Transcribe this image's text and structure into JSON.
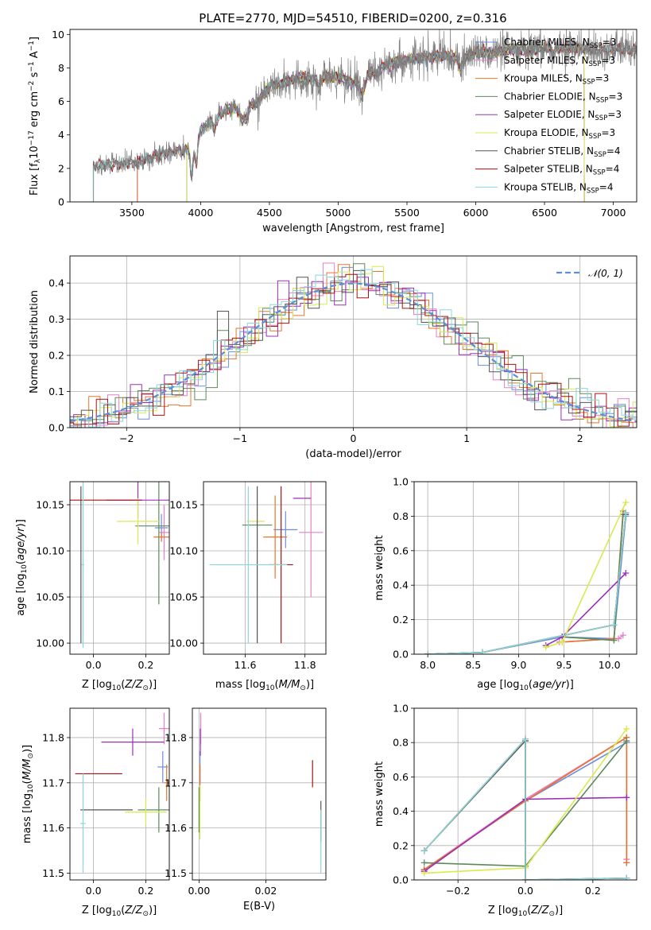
{
  "figure_title": "PLATE=2770, MJD=54510, FIBERID=0200, z=0.316",
  "colors": {
    "Chabrier MILES": "#6c8ee0",
    "Salpeter MILES": "#e77fc7",
    "Kroupa MILES": "#e8752b",
    "Chabrier ELODIE": "#5c8a5c",
    "Salpeter ELODIE": "#9b30b8",
    "Kroupa ELODIE": "#d8ea4e",
    "Chabrier STELIB": "#555555",
    "Salpeter STELIB": "#aa1111",
    "Kroupa STELIB": "#88d8d8",
    "normal": "#5b8fd6"
  },
  "chart_data": [
    {
      "id": "spectrum",
      "type": "line",
      "title": "PLATE=2770, MJD=54510, FIBERID=0200, z=0.316",
      "xlabel": "wavelength [Angstrom, rest frame]",
      "ylabel": "Flux [f_λ 10^-17 erg cm^-2 s^-1 A^-1]",
      "xlim": [
        3050,
        7170
      ],
      "ylim": [
        0,
        10.3
      ],
      "xticks": [
        3500,
        4000,
        4500,
        5000,
        5500,
        6000,
        6500,
        7000
      ],
      "yticks": [
        0,
        2,
        4,
        6,
        8,
        10
      ],
      "legend_position": "right",
      "legend": [
        {
          "name": "Chabrier MILES",
          "nssp": "3"
        },
        {
          "name": "Salpeter MILES",
          "nssp": "3"
        },
        {
          "name": "Kroupa MILES",
          "nssp": "3"
        },
        {
          "name": "Chabrier ELODIE",
          "nssp": "3"
        },
        {
          "name": "Salpeter ELODIE",
          "nssp": "3"
        },
        {
          "name": "Kroupa ELODIE",
          "nssp": "3"
        },
        {
          "name": "Chabrier STELIB",
          "nssp": "4"
        },
        {
          "name": "Salpeter STELIB",
          "nssp": "4"
        },
        {
          "name": "Kroupa STELIB",
          "nssp": "4"
        }
      ],
      "continuum": {
        "x": [
          3220,
          3300,
          3400,
          3500,
          3600,
          3700,
          3800,
          3900,
          3950,
          4000,
          4100,
          4200,
          4300,
          4400,
          4500,
          4600,
          4700,
          4800,
          4900,
          5000,
          5100,
          5200,
          5300,
          5400,
          5500,
          5600,
          5700,
          5800,
          5900,
          6000,
          6100,
          6200,
          6300,
          6400,
          6500,
          6600,
          6700,
          6800,
          6900,
          7000,
          7100,
          7170
        ],
        "y": [
          2.2,
          2.2,
          2.25,
          2.3,
          2.5,
          2.8,
          3.0,
          3.1,
          3.0,
          4.3,
          5.0,
          5.6,
          5.7,
          5.9,
          6.9,
          7.1,
          7.4,
          7.3,
          7.5,
          7.5,
          7.1,
          7.6,
          8.0,
          8.3,
          8.5,
          8.6,
          8.7,
          8.7,
          8.6,
          8.9,
          8.9,
          9.0,
          9.1,
          9.0,
          9.2,
          9.2,
          9.2,
          9.1,
          9.1,
          9.1,
          9.1,
          9.0
        ]
      },
      "spectral_features": [
        {
          "x": 3934,
          "depth": 1.6,
          "width": 8
        },
        {
          "x": 3969,
          "depth": 1.2,
          "width": 8
        },
        {
          "x": 4102,
          "depth": 0.7,
          "width": 10
        },
        {
          "x": 4304,
          "depth": 0.8,
          "width": 20
        },
        {
          "x": 4340,
          "depth": 0.6,
          "width": 10
        },
        {
          "x": 4861,
          "depth": 0.5,
          "width": 12
        },
        {
          "x": 5175,
          "depth": 1.0,
          "width": 20
        },
        {
          "x": 5270,
          "depth": 0.4,
          "width": 12
        },
        {
          "x": 5890,
          "depth": 0.8,
          "width": 10
        },
        {
          "x": 6563,
          "depth": 0.4,
          "width": 12
        }
      ]
    },
    {
      "id": "residuals",
      "type": "histogram",
      "xlabel": "(data-model)/error",
      "ylabel": "Normed distribution",
      "xlim": [
        -2.5,
        2.5
      ],
      "ylim": [
        0,
        0.475
      ],
      "xticks": [
        -2,
        -1,
        0,
        1,
        2
      ],
      "yticks": [
        0.0,
        0.1,
        0.2,
        0.3,
        0.4
      ],
      "grid": true,
      "bin_width": 0.1,
      "reference_curve": {
        "name": "𝒩(0, 1)",
        "style": "dashed",
        "mean": 0,
        "sigma": 1
      },
      "legend_position": "top-right"
    },
    {
      "id": "age_vs_Z",
      "type": "errorbar",
      "xlabel": "Z [log10(Z/Z⊙)]",
      "ylabel": "age [log10(age/yr)]",
      "xlim": [
        -0.09,
        0.29
      ],
      "ylim": [
        9.988,
        10.175
      ],
      "xticks": [
        0.0,
        0.2
      ],
      "yticks": [
        10.0,
        10.05,
        10.1,
        10.15
      ],
      "grid": true,
      "points": [
        {
          "series": "Chabrier MILES",
          "x": 0.26,
          "y": 10.125,
          "xerr": 0.025,
          "yerr": 0.015
        },
        {
          "series": "Salpeter MILES",
          "x": 0.27,
          "y": 10.12,
          "xerr": 0.02,
          "yerr": 0.03
        },
        {
          "series": "Kroupa MILES",
          "x": 0.26,
          "y": 10.115,
          "xerr": 0.03,
          "yerr": 0.005
        },
        {
          "series": "Chabrier ELODIE",
          "x": 0.25,
          "y": 10.127,
          "xerr": 0.09,
          "yerr": 0.085
        },
        {
          "series": "Salpeter ELODIE",
          "x": 0.17,
          "y": 10.155,
          "xerr": 0.12,
          "yerr": 0.02
        },
        {
          "series": "Kroupa ELODIE",
          "x": 0.17,
          "y": 10.132,
          "xerr": 0.08,
          "yerr": 0.025
        },
        {
          "series": "Chabrier STELIB",
          "x": -0.048,
          "y": 10.085,
          "xerr": 0.0,
          "yerr": 0.085
        },
        {
          "series": "Salpeter STELIB",
          "x": 0.015,
          "y": 10.155,
          "xerr": 0.17,
          "yerr": 0.0
        },
        {
          "series": "Kroupa STELIB",
          "x": -0.04,
          "y": 10.085,
          "xerr": 0.005,
          "yerr": 0.09
        }
      ]
    },
    {
      "id": "age_vs_mass",
      "type": "errorbar",
      "xlabel": "mass [log10(M/M⊙)]",
      "ylabel": "",
      "xlim": [
        11.46,
        11.87
      ],
      "ylim": [
        9.988,
        10.175
      ],
      "xticks": [
        11.6,
        11.8
      ],
      "yticks": [
        10.0,
        10.05,
        10.1,
        10.15
      ],
      "grid": true,
      "points": [
        {
          "series": "Chabrier MILES",
          "x": 11.735,
          "y": 10.123,
          "xerr": 0.04,
          "yerr": 0.02
        },
        {
          "series": "Salpeter MILES",
          "x": 11.82,
          "y": 10.12,
          "xerr": 0.04,
          "yerr": 0.07
        },
        {
          "series": "Kroupa MILES",
          "x": 11.7,
          "y": 10.115,
          "xerr": 0.04,
          "yerr": 0.045
        },
        {
          "series": "Chabrier ELODIE",
          "x": 11.64,
          "y": 10.128,
          "xerr": 0.05,
          "yerr": 0.0
        },
        {
          "series": "Salpeter ELODIE",
          "x": 11.79,
          "y": 10.157,
          "xerr": 0.03,
          "yerr": 0.0
        },
        {
          "series": "Kroupa ELODIE",
          "x": 11.635,
          "y": 10.132,
          "xerr": 0.03,
          "yerr": 0.0
        },
        {
          "series": "Chabrier STELIB",
          "x": 11.64,
          "y": 10.085,
          "xerr": 0.0,
          "yerr": 0.085
        },
        {
          "series": "Salpeter STELIB",
          "x": 11.72,
          "y": 10.085,
          "xerr": 0.04,
          "yerr": 0.085
        },
        {
          "series": "Kroupa STELIB",
          "x": 11.61,
          "y": 10.085,
          "xerr": 0.13,
          "yerr": 0.085
        }
      ]
    },
    {
      "id": "massweight_vs_age",
      "type": "line",
      "xlabel": "age [log10(age/yr)]",
      "ylabel": "mass weight",
      "xlim": [
        7.85,
        10.3
      ],
      "ylim": [
        0,
        1.0
      ],
      "xticks": [
        8.0,
        8.5,
        9.0,
        9.5,
        10.0
      ],
      "yticks": [
        0.0,
        0.2,
        0.4,
        0.6,
        0.8,
        1.0
      ],
      "grid": true,
      "series": [
        {
          "name": "Chabrier MILES",
          "x": [
            8.0,
            8.6,
            9.48,
            10.05,
            10.18
          ],
          "y": [
            0.0,
            0.01,
            0.1,
            0.09,
            0.8
          ]
        },
        {
          "name": "Salpeter MILES",
          "x": [
            9.45,
            10.1,
            10.15
          ],
          "y": [
            0.07,
            0.09,
            0.11
          ]
        },
        {
          "name": "Kroupa MILES",
          "x": [
            9.48,
            10.05,
            10.15
          ],
          "y": [
            0.07,
            0.09,
            0.83
          ]
        },
        {
          "name": "Chabrier ELODIE",
          "x": [
            9.48,
            10.05,
            10.15
          ],
          "y": [
            0.1,
            0.08,
            0.81
          ]
        },
        {
          "name": "Salpeter ELODIE",
          "x": [
            9.3,
            9.48,
            10.18
          ],
          "y": [
            0.05,
            0.1,
            0.47
          ]
        },
        {
          "name": "Kroupa ELODIE",
          "x": [
            9.3,
            9.48,
            10.18
          ],
          "y": [
            0.04,
            0.07,
            0.88
          ]
        },
        {
          "name": "Chabrier STELIB",
          "x": [
            8.0,
            8.6,
            10.05,
            10.18
          ],
          "y": [
            0.0,
            0.01,
            0.17,
            0.81
          ]
        },
        {
          "name": "Salpeter STELIB",
          "x": [
            8.0,
            8.6,
            10.05,
            10.18
          ],
          "y": [
            0.0,
            0.01,
            0.17,
            0.82
          ]
        },
        {
          "name": "Kroupa STELIB",
          "x": [
            8.0,
            8.6,
            10.05,
            10.18
          ],
          "y": [
            0.0,
            0.01,
            0.17,
            0.82
          ]
        }
      ]
    },
    {
      "id": "mass_vs_Z",
      "type": "errorbar",
      "xlabel": "Z [log10(Z/Z⊙)]",
      "ylabel": "mass [log10(M/M⊙)]",
      "xlim": [
        -0.09,
        0.29
      ],
      "ylim": [
        11.485,
        11.865
      ],
      "xticks": [
        0.0,
        0.2
      ],
      "yticks": [
        11.5,
        11.6,
        11.7,
        11.8
      ],
      "grid": true,
      "points": [
        {
          "series": "Chabrier MILES",
          "x": 0.265,
          "y": 11.735,
          "xerr": 0.02,
          "yerr": 0.035
        },
        {
          "series": "Salpeter MILES",
          "x": 0.27,
          "y": 11.82,
          "xerr": 0.02,
          "yerr": 0.035
        },
        {
          "series": "Kroupa MILES",
          "x": 0.28,
          "y": 11.7,
          "xerr": 0.01,
          "yerr": 0.04
        },
        {
          "series": "Chabrier ELODIE",
          "x": 0.25,
          "y": 11.64,
          "xerr": 0.08,
          "yerr": 0.05
        },
        {
          "series": "Salpeter ELODIE",
          "x": 0.15,
          "y": 11.79,
          "xerr": 0.12,
          "yerr": 0.03
        },
        {
          "series": "Kroupa ELODIE",
          "x": 0.2,
          "y": 11.635,
          "xerr": 0.08,
          "yerr": 0.03
        },
        {
          "series": "Chabrier STELIB",
          "x": 0.05,
          "y": 11.64,
          "xerr": 0.1,
          "yerr": 0.0
        },
        {
          "series": "Salpeter STELIB",
          "x": 0.02,
          "y": 11.72,
          "xerr": 0.09,
          "yerr": 0.0
        },
        {
          "series": "Kroupa STELIB",
          "x": -0.04,
          "y": 11.61,
          "xerr": 0.01,
          "yerr": 0.11
        }
      ]
    },
    {
      "id": "mass_vs_EBV",
      "type": "errorbar",
      "xlabel": "E(B-V)",
      "ylabel": "",
      "xlim": [
        -0.002,
        0.038
      ],
      "ylim": [
        11.485,
        11.865
      ],
      "xticks": [
        0.0,
        0.02
      ],
      "yticks": [
        11.5,
        11.6,
        11.7,
        11.8
      ],
      "grid": true,
      "points": [
        {
          "series": "Chabrier MILES",
          "x": 0.0003,
          "y": 11.735,
          "xerr": 0.0,
          "yerr": 0.035
        },
        {
          "series": "Salpeter MILES",
          "x": 0.0005,
          "y": 11.82,
          "xerr": 0.0,
          "yerr": 0.035
        },
        {
          "series": "Kroupa MILES",
          "x": 0.0003,
          "y": 11.7,
          "xerr": 0.0,
          "yerr": 0.04
        },
        {
          "series": "Chabrier ELODIE",
          "x": 0.0,
          "y": 11.64,
          "xerr": 0.0,
          "yerr": 0.05
        },
        {
          "series": "Salpeter ELODIE",
          "x": 0.0004,
          "y": 11.79,
          "xerr": 0.0,
          "yerr": 0.03
        },
        {
          "series": "Kroupa ELODIE",
          "x": 0.0003,
          "y": 11.635,
          "xerr": 0.0,
          "yerr": 0.06
        },
        {
          "series": "Chabrier STELIB",
          "x": 0.0365,
          "y": 11.615,
          "xerr": 0.0,
          "yerr": 0.045
        },
        {
          "series": "Salpeter STELIB",
          "x": 0.034,
          "y": 11.72,
          "xerr": 0.0,
          "yerr": 0.03
        },
        {
          "series": "Kroupa STELIB",
          "x": 0.0365,
          "y": 11.57,
          "xerr": 0.0,
          "yerr": 0.07
        }
      ]
    },
    {
      "id": "massweight_vs_Z",
      "type": "line",
      "xlabel": "Z [log10(Z/Z⊙)]",
      "ylabel": "mass weight",
      "xlim": [
        -0.33,
        0.33
      ],
      "ylim": [
        0,
        1.0
      ],
      "xticks": [
        -0.2,
        0.0,
        0.2
      ],
      "yticks": [
        0.0,
        0.2,
        0.4,
        0.6,
        0.8,
        1.0
      ],
      "grid": true,
      "series": [
        {
          "name": "Chabrier MILES",
          "x": [
            -0.3,
            0.0,
            0.3,
            0.3
          ],
          "y": [
            0.06,
            0.46,
            0.8,
            0.1
          ]
        },
        {
          "name": "Salpeter MILES",
          "x": [
            -0.3,
            0.0,
            0.3,
            0.3
          ],
          "y": [
            0.06,
            0.47,
            0.83,
            0.12
          ]
        },
        {
          "name": "Kroupa MILES",
          "x": [
            -0.3,
            0.0,
            0.3,
            0.3
          ],
          "y": [
            0.06,
            0.46,
            0.83,
            0.1
          ]
        },
        {
          "name": "Chabrier ELODIE",
          "x": [
            -0.3,
            0.0,
            0.3
          ],
          "y": [
            0.1,
            0.08,
            0.81
          ]
        },
        {
          "name": "Salpeter ELODIE",
          "x": [
            -0.3,
            0.0,
            0.3
          ],
          "y": [
            0.05,
            0.47,
            0.48
          ]
        },
        {
          "name": "Kroupa ELODIE",
          "x": [
            -0.3,
            0.0,
            0.3
          ],
          "y": [
            0.04,
            0.07,
            0.88
          ]
        },
        {
          "name": "Chabrier STELIB",
          "x": [
            -0.3,
            0.0,
            0.0,
            0.3
          ],
          "y": [
            0.17,
            0.81,
            0.0,
            0.01
          ]
        },
        {
          "name": "Salpeter STELIB",
          "x": [
            -0.3,
            0.0,
            0.0,
            0.3
          ],
          "y": [
            0.17,
            0.82,
            0.0,
            0.01
          ]
        },
        {
          "name": "Kroupa STELIB",
          "x": [
            -0.3,
            0.0,
            0.0,
            0.3
          ],
          "y": [
            0.17,
            0.82,
            0.0,
            0.01
          ]
        }
      ]
    }
  ]
}
